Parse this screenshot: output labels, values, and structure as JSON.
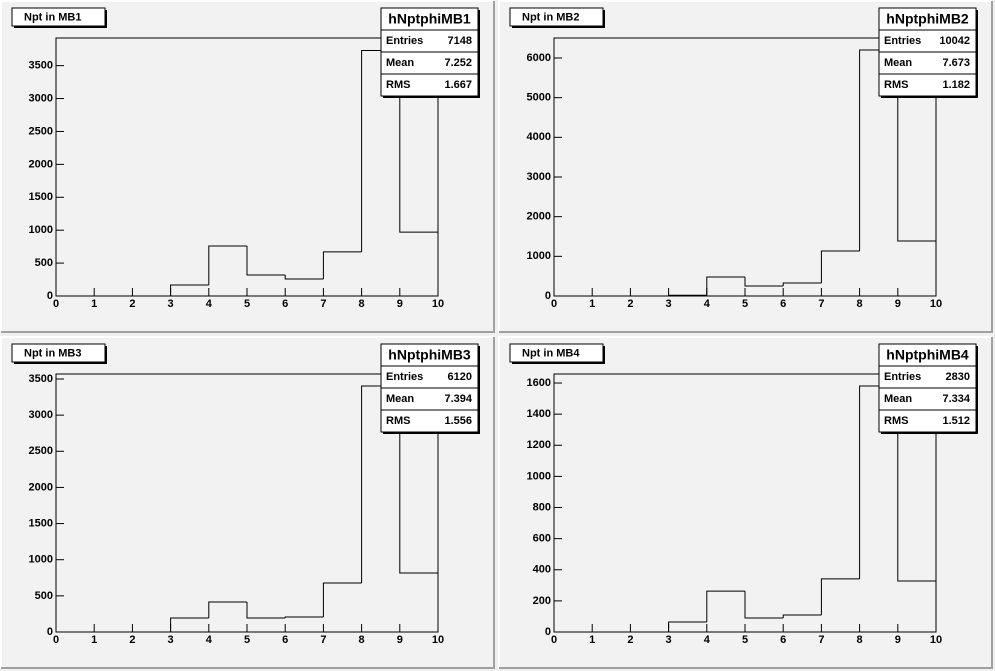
{
  "chart_data": [
    {
      "type": "histogram",
      "title": "Npt in MB1",
      "bins": [
        0,
        1,
        2,
        3,
        4,
        5,
        6,
        7,
        8,
        9,
        10
      ],
      "values": [
        0,
        0,
        0,
        167,
        760,
        320,
        259,
        670,
        3730,
        970
      ],
      "color": "#000000",
      "xlim": [
        0,
        10
      ],
      "ylim": [
        0,
        3920
      ],
      "xticks": [
        0,
        1,
        2,
        3,
        4,
        5,
        6,
        7,
        8,
        9,
        10
      ],
      "yticks": [
        0,
        500,
        1000,
        1500,
        2000,
        2500,
        3000,
        3500
      ],
      "stats": {
        "name": "hNptphiMB1",
        "rows": [
          {
            "label": "Entries",
            "value": 7148
          },
          {
            "label": "Mean",
            "value": 7.252
          },
          {
            "label": "RMS",
            "value": 1.667
          }
        ]
      }
    },
    {
      "type": "histogram",
      "title": "Npt in MB2",
      "bins": [
        0,
        1,
        2,
        3,
        4,
        5,
        6,
        7,
        8,
        9,
        10
      ],
      "values": [
        0,
        0,
        0,
        20,
        479,
        252,
        328,
        1134,
        6200,
        1386
      ],
      "color": "#000000",
      "xlim": [
        0,
        10
      ],
      "ylim": [
        0,
        6504
      ],
      "xticks": [
        0,
        1,
        2,
        3,
        4,
        5,
        6,
        7,
        8,
        9,
        10
      ],
      "yticks": [
        0,
        1000,
        2000,
        3000,
        4000,
        5000,
        6000
      ],
      "stats": {
        "name": "hNptphiMB2",
        "rows": [
          {
            "label": "Entries",
            "value": 10042
          },
          {
            "label": "Mean",
            "value": 7.673
          },
          {
            "label": "RMS",
            "value": 1.182
          }
        ]
      }
    },
    {
      "type": "histogram",
      "title": "Npt in MB3",
      "bins": [
        0,
        1,
        2,
        3,
        4,
        5,
        6,
        7,
        8,
        9,
        10
      ],
      "values": [
        0,
        0,
        0,
        194,
        415,
        194,
        207,
        678,
        3403,
        816
      ],
      "color": "#000000",
      "xlim": [
        0,
        10
      ],
      "ylim": [
        0,
        3569
      ],
      "xticks": [
        0,
        1,
        2,
        3,
        4,
        5,
        6,
        7,
        8,
        9,
        10
      ],
      "yticks": [
        0,
        500,
        1000,
        1500,
        2000,
        2500,
        3000,
        3500
      ],
      "stats": {
        "name": "hNptphiMB3",
        "rows": [
          {
            "label": "Entries",
            "value": 6120
          },
          {
            "label": "Mean",
            "value": 7.394
          },
          {
            "label": "RMS",
            "value": 1.556
          }
        ]
      }
    },
    {
      "type": "histogram",
      "title": "Npt in MB4",
      "bins": [
        0,
        1,
        2,
        3,
        4,
        5,
        6,
        7,
        8,
        9,
        10
      ],
      "values": [
        0,
        0,
        0,
        64,
        263,
        90,
        109,
        341,
        1581,
        328
      ],
      "color": "#000000",
      "xlim": [
        0,
        10
      ],
      "ylim": [
        0,
        1658
      ],
      "xticks": [
        0,
        1,
        2,
        3,
        4,
        5,
        6,
        7,
        8,
        9,
        10
      ],
      "yticks": [
        0,
        200,
        400,
        600,
        800,
        1000,
        1200,
        1400,
        1600
      ],
      "stats": {
        "name": "hNptphiMB4",
        "rows": [
          {
            "label": "Entries",
            "value": 2830
          },
          {
            "label": "Mean",
            "value": 7.334
          },
          {
            "label": "RMS",
            "value": 1.512
          }
        ]
      }
    }
  ]
}
